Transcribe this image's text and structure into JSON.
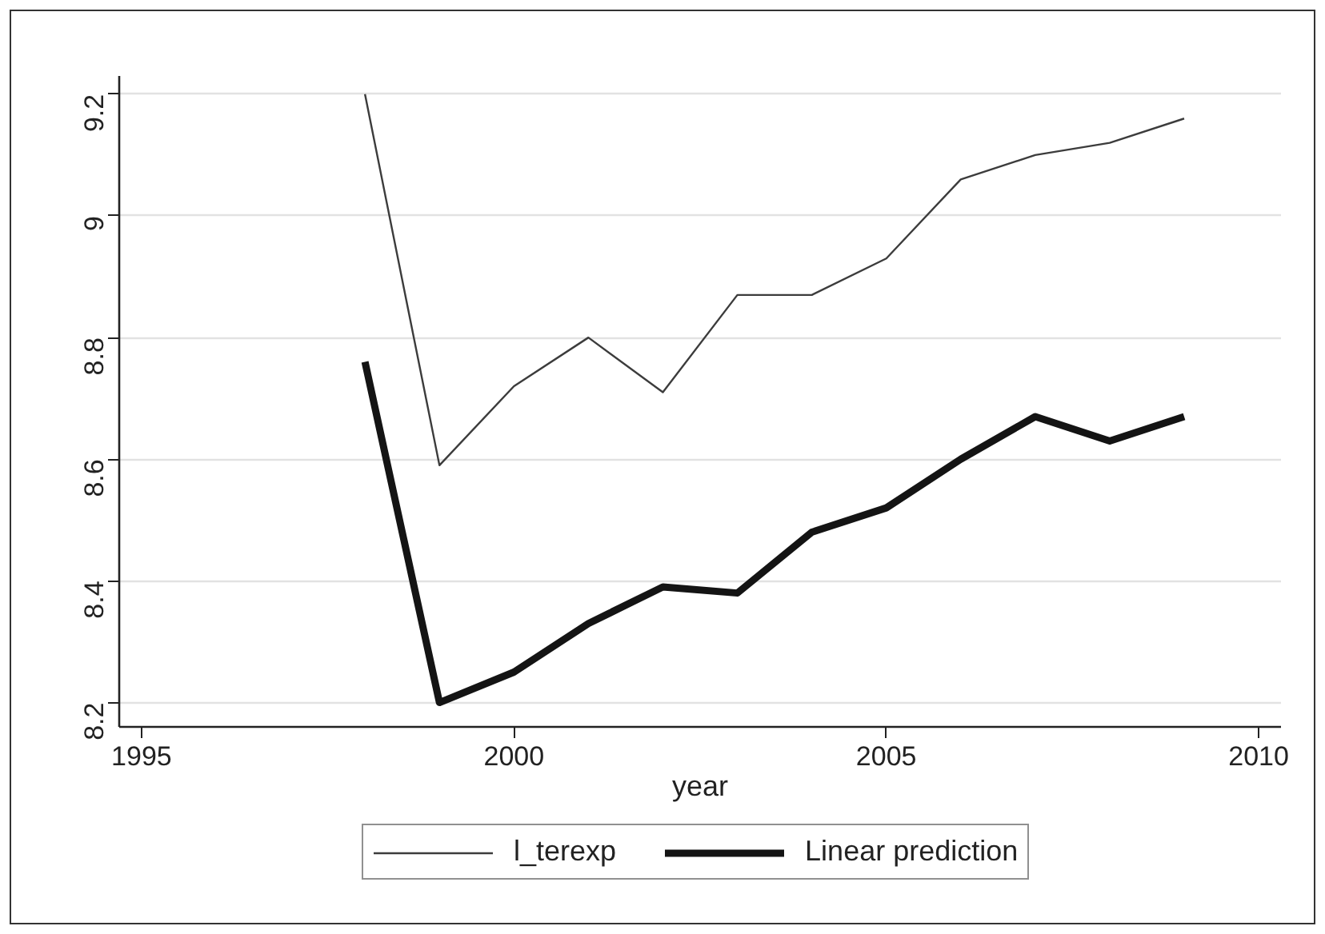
{
  "chart_data": {
    "type": "line",
    "xlabel": "year",
    "x": [
      1998,
      1999,
      2000,
      2001,
      2002,
      2003,
      2004,
      2005,
      2006,
      2007,
      2008,
      2009
    ],
    "series": [
      {
        "name": "l_terexp",
        "color": "#3c3c3c",
        "values": [
          9.2,
          8.59,
          8.72,
          8.8,
          8.71,
          8.87,
          8.87,
          8.93,
          9.06,
          9.1,
          9.12,
          9.16
        ]
      },
      {
        "name": "Linear prediction",
        "color": "#141414",
        "values": [
          8.76,
          8.2,
          8.25,
          8.33,
          8.39,
          8.38,
          8.48,
          8.52,
          8.6,
          8.67,
          8.63,
          8.67
        ]
      }
    ],
    "xlim": [
      1994.7,
      2010.3
    ],
    "ylim": [
      8.16,
      9.23
    ],
    "xticks": [
      1995,
      2000,
      2005,
      2010
    ],
    "yticks": [
      8.2,
      8.4,
      8.6,
      8.8,
      9,
      9.2
    ],
    "grid": "y",
    "legend": "bottom"
  }
}
